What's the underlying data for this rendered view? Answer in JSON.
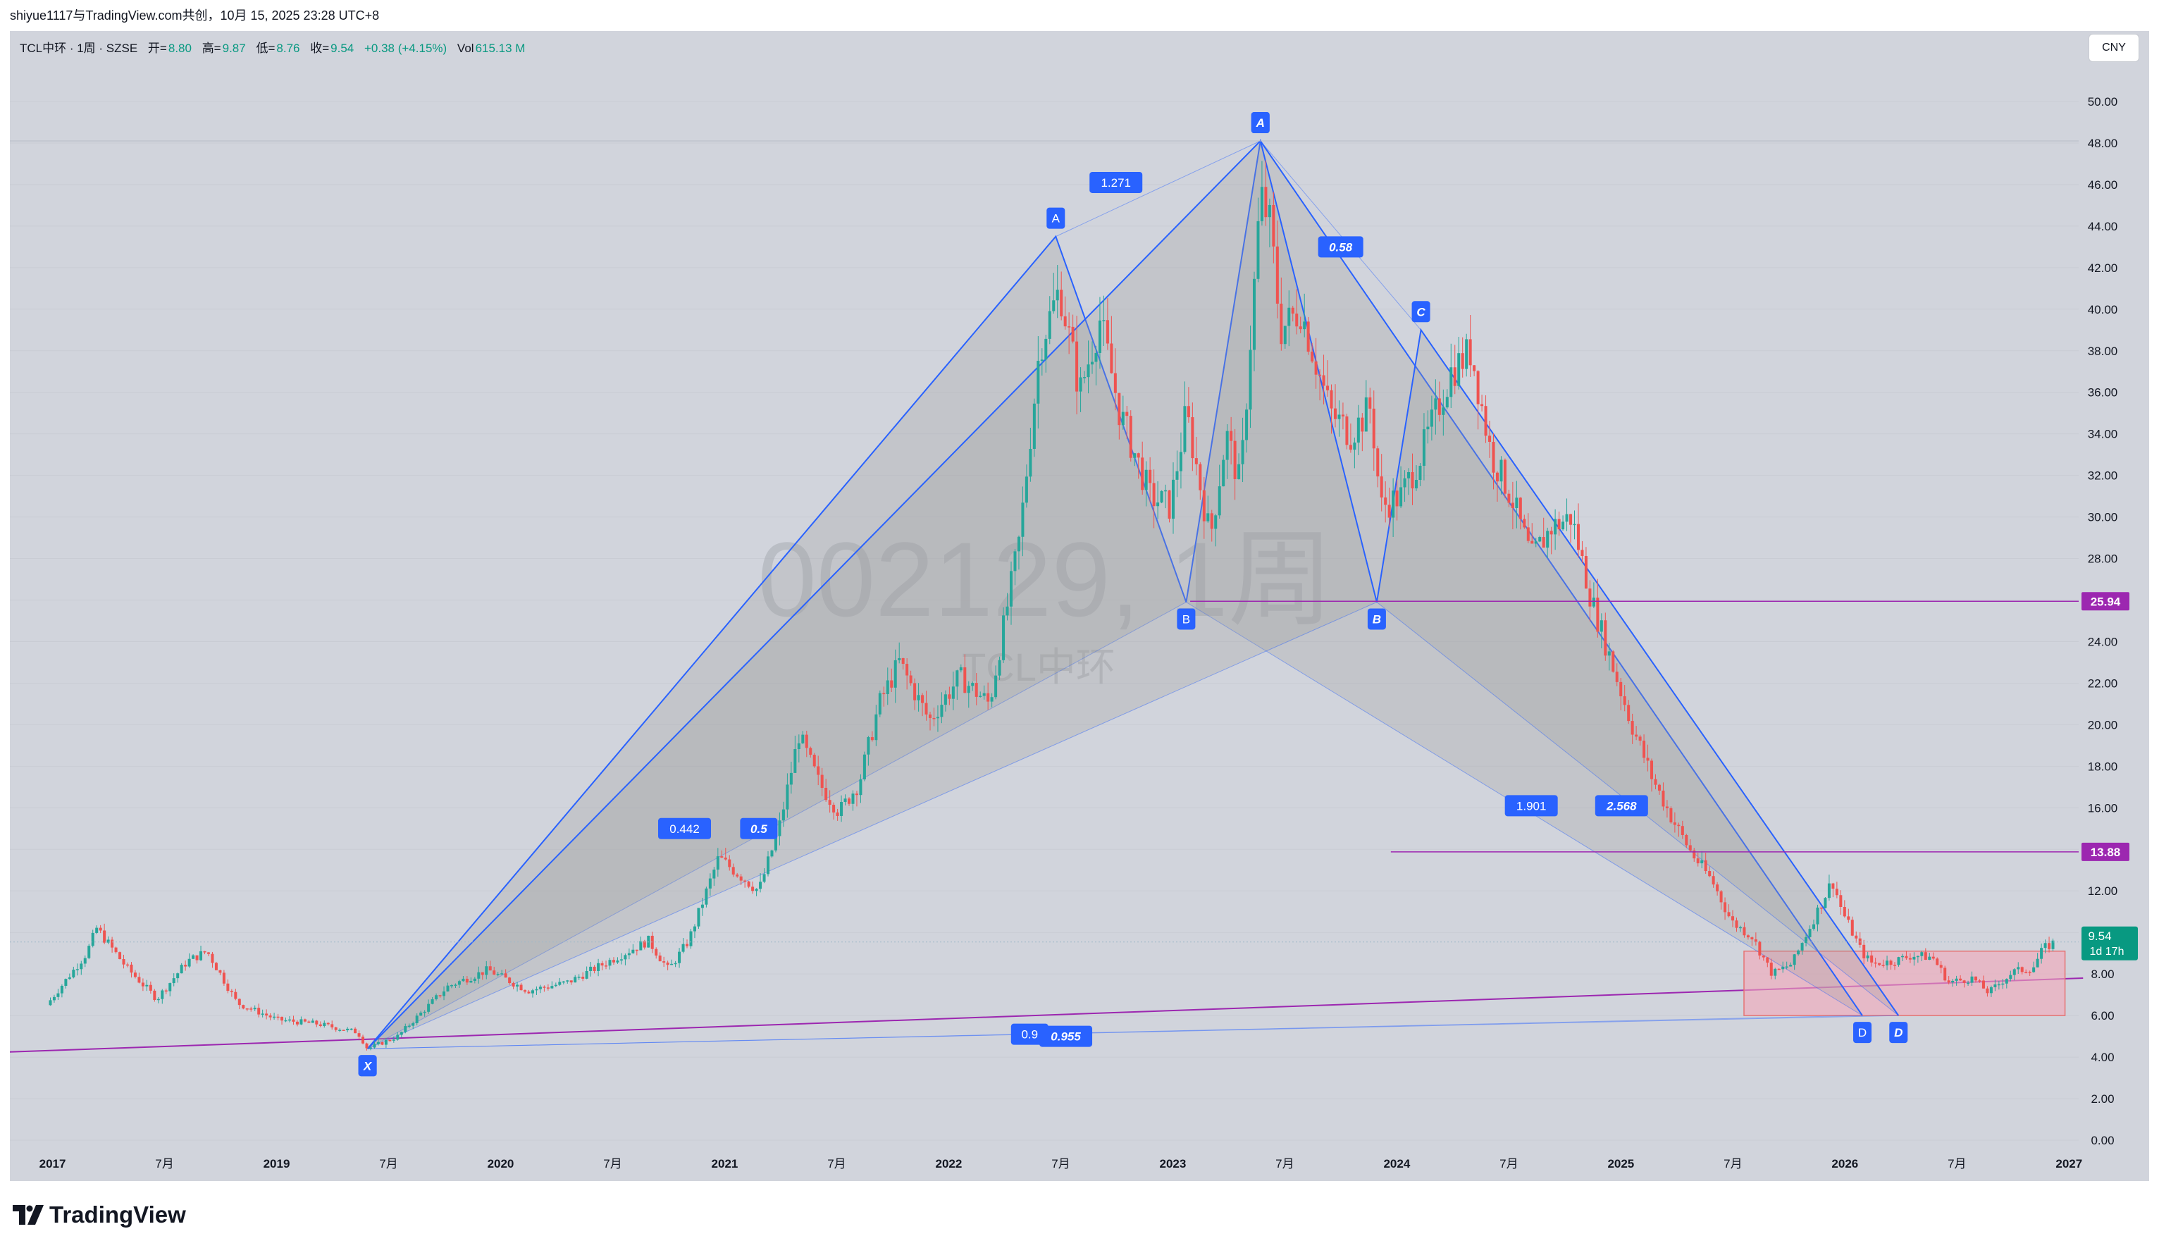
{
  "header": {
    "attribution": "shiyue1117与TradingView.com共创，10月 15, 2025 23:28 UTC+8"
  },
  "symbol": {
    "title": "TCL中环 · 1周 · SZSE",
    "open_label": "开=",
    "open": "8.80",
    "high_label": "高=",
    "high": "9.87",
    "low_label": "低=",
    "low": "8.76",
    "close_label": "收=",
    "close": "9.54",
    "change": "+0.38 (+4.15%)",
    "vol_label": "Vol",
    "vol": "615.13 M"
  },
  "currency": "CNY",
  "watermark": {
    "code": "002129, 1周",
    "name": "TCL中环"
  },
  "footer": {
    "logo_text": "TradingView"
  },
  "colors": {
    "background": "#d1d4dc",
    "up": "#26a69a",
    "down": "#ef5350",
    "pattern_line": "#2962ff",
    "pattern_fill": "#9e9e9e",
    "horizontal_level": "#9c27b0",
    "zone_fill": "#f4a7b9",
    "price_badge": "#089981"
  },
  "chart_data": {
    "type": "candlestick",
    "title": "TCL中环 · 1周 · SZSE",
    "x_ticks": [
      "2017",
      "7月",
      "2019",
      "7月",
      "2020",
      "7月",
      "2021",
      "7月",
      "2022",
      "7月",
      "2023",
      "7月",
      "2024",
      "7月",
      "2025",
      "7月",
      "2026",
      "7月",
      "2027"
    ],
    "y_ticks": [
      "50.00",
      "48.00",
      "46.00",
      "44.00",
      "42.00",
      "40.00",
      "38.00",
      "36.00",
      "34.00",
      "32.00",
      "30.00",
      "28.00",
      "26.00",
      "24.00",
      "22.00",
      "20.00",
      "18.00",
      "16.00",
      "14.00",
      "12.00",
      "10.00",
      "8.00",
      "6.00",
      "4.00",
      "2.00",
      "0.00"
    ],
    "ylim": [
      0,
      50
    ],
    "price_path": [
      [
        2016.9,
        6.5
      ],
      [
        2017.1,
        9.0
      ],
      [
        2017.15,
        10.2
      ],
      [
        2017.3,
        8.3
      ],
      [
        2017.45,
        6.8
      ],
      [
        2017.6,
        8.6
      ],
      [
        2017.7,
        9.1
      ],
      [
        2017.85,
        6.6
      ],
      [
        2018.05,
        5.8
      ],
      [
        2018.25,
        5.6
      ],
      [
        2018.45,
        5.2
      ],
      [
        2018.5,
        4.4
      ],
      [
        2018.65,
        5.0
      ],
      [
        2018.9,
        7.4
      ],
      [
        2019.1,
        8.2
      ],
      [
        2019.3,
        7.2
      ],
      [
        2019.5,
        7.6
      ],
      [
        2019.7,
        8.6
      ],
      [
        2019.9,
        9.6
      ],
      [
        2020.0,
        8.2
      ],
      [
        2020.1,
        9.6
      ],
      [
        2020.25,
        13.6
      ],
      [
        2020.45,
        12.0
      ],
      [
        2020.55,
        15.0
      ],
      [
        2020.65,
        19.5
      ],
      [
        2020.75,
        17.2
      ],
      [
        2020.85,
        15.8
      ],
      [
        2020.95,
        17.2
      ],
      [
        2021.05,
        21.0
      ],
      [
        2021.15,
        23.0
      ],
      [
        2021.3,
        20.2
      ],
      [
        2021.45,
        22.3
      ],
      [
        2021.6,
        21.0
      ],
      [
        2021.75,
        29.0
      ],
      [
        2021.85,
        38.2
      ],
      [
        2021.95,
        41.0
      ],
      [
        2022.05,
        36.0
      ],
      [
        2022.15,
        39.5
      ],
      [
        2022.25,
        35.0
      ],
      [
        2022.4,
        31.0
      ],
      [
        2022.5,
        30.5
      ],
      [
        2022.58,
        35.0
      ],
      [
        2022.7,
        29.0
      ],
      [
        2022.78,
        34.0
      ],
      [
        2022.85,
        31.5
      ],
      [
        2022.95,
        45.5
      ],
      [
        2023.0,
        44.0
      ],
      [
        2023.05,
        39.0
      ],
      [
        2023.15,
        40.0
      ],
      [
        2023.3,
        35.0
      ],
      [
        2023.4,
        34.0
      ],
      [
        2023.5,
        35.3
      ],
      [
        2023.55,
        30.5
      ],
      [
        2023.65,
        31.0
      ],
      [
        2023.75,
        33.0
      ],
      [
        2023.9,
        37.0
      ],
      [
        2024.0,
        38.0
      ],
      [
        2024.1,
        33.0
      ],
      [
        2024.2,
        31.0
      ],
      [
        2024.3,
        28.0
      ],
      [
        2024.4,
        29.5
      ],
      [
        2024.5,
        30.0
      ],
      [
        2024.6,
        26.0
      ],
      [
        2024.7,
        23.0
      ],
      [
        2024.8,
        20.0
      ],
      [
        2024.9,
        17.5
      ],
      [
        2025.0,
        15.5
      ],
      [
        2025.1,
        13.8
      ],
      [
        2025.2,
        12.5
      ],
      [
        2025.3,
        10.5
      ],
      [
        2025.4,
        9.8
      ],
      [
        2025.5,
        8.0
      ],
      [
        2025.6,
        8.5
      ],
      [
        2025.7,
        10.5
      ],
      [
        2025.8,
        12.5
      ],
      [
        2025.85,
        11.0
      ],
      [
        2025.95,
        9.0
      ],
      [
        2026.0,
        8.5
      ],
      [
        2026.1,
        8.6
      ],
      [
        2026.2,
        8.9
      ],
      [
        2026.3,
        8.8
      ],
      [
        2026.38,
        7.6
      ],
      [
        2026.5,
        7.8
      ],
      [
        2026.58,
        7.1
      ],
      [
        2026.7,
        8.1
      ],
      [
        2026.8,
        8.3
      ],
      [
        2026.85,
        9.2
      ],
      [
        2026.91,
        9.54
      ]
    ],
    "last_price": "9.54",
    "last_price_countdown": "1d 17h",
    "horizontal_levels": [
      {
        "price": 25.94,
        "label": "25.94"
      },
      {
        "price": 13.88,
        "label": "13.88"
      }
    ],
    "support_trendline": [
      [
        2016.0,
        4.0
      ],
      [
        2027.05,
        7.8
      ]
    ],
    "target_zone": {
      "x_from": 2025.36,
      "x_to": 2026.96,
      "price_low": 6.0,
      "price_high": 9.1
    },
    "harmonic_patterns": [
      {
        "points": [
          {
            "label": "X",
            "x": 2018.5,
            "price": 4.4
          },
          {
            "label": "A",
            "x": 2021.93,
            "price": 43.5
          },
          {
            "label": "B",
            "x": 2022.58,
            "price": 25.9
          },
          {
            "label": "C",
            "x": 2022.95,
            "price": 48.1
          },
          {
            "label": "D",
            "x": 2025.95,
            "price": 6.0
          }
        ],
        "ratios": [
          {
            "value": "0.442",
            "anchor_x": 2020.08,
            "anchor_price": 15.0
          },
          {
            "value": "1.271",
            "anchor_x": 2022.23,
            "anchor_price": 46.1
          },
          {
            "value": "1.901",
            "anchor_x": 2024.3,
            "anchor_price": 16.1
          },
          {
            "value": "0.9",
            "anchor_x": 2021.8,
            "anchor_price": 5.1
          }
        ]
      },
      {
        "points": [
          {
            "label": "X",
            "x": 2018.5,
            "price": 4.4
          },
          {
            "label": "A",
            "x": 2022.95,
            "price": 48.1
          },
          {
            "label": "B",
            "x": 2023.53,
            "price": 25.9
          },
          {
            "label": "C",
            "x": 2023.75,
            "price": 39.0
          },
          {
            "label": "D",
            "x": 2026.13,
            "price": 6.0
          }
        ],
        "ratios": [
          {
            "value": "0.5",
            "anchor_x": 2020.45,
            "anchor_price": 15.0
          },
          {
            "value": "0.58",
            "anchor_x": 2023.35,
            "anchor_price": 43.0
          },
          {
            "value": "2.568",
            "anchor_x": 2024.75,
            "anchor_price": 16.1
          },
          {
            "value": "0.955",
            "anchor_x": 2021.98,
            "anchor_price": 5.0
          }
        ]
      }
    ]
  }
}
